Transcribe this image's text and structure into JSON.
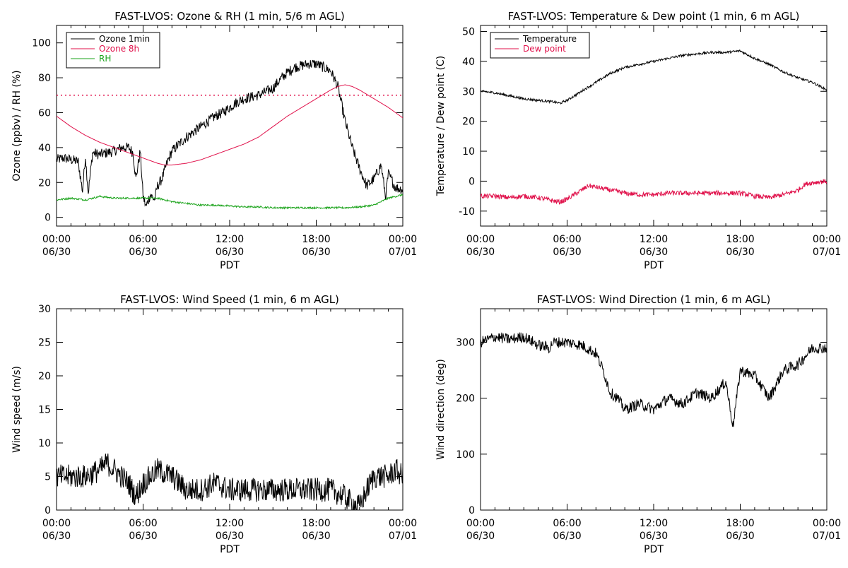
{
  "colors": {
    "black": "#000000",
    "red": "#e0104a",
    "green": "#1aa31a",
    "background": "#ffffff"
  },
  "chart_data": [
    {
      "id": "ozone",
      "type": "line",
      "title": "FAST-LVOS: Ozone & RH (1 min, 5/6 m AGL)",
      "xlabel": "PDT",
      "ylabel": "Ozone (ppbv) / RH (%)",
      "xlim": [
        0,
        24
      ],
      "ylim": [
        -5,
        110
      ],
      "yticks": [
        0,
        20,
        40,
        60,
        80,
        100
      ],
      "xticks": [
        {
          "x": 0,
          "line1": "00:00",
          "line2": "06/30"
        },
        {
          "x": 6,
          "line1": "06:00",
          "line2": "06/30"
        },
        {
          "x": 12,
          "line1": "12:00",
          "line2": "06/30"
        },
        {
          "x": 18,
          "line1": "18:00",
          "line2": "06/30"
        },
        {
          "x": 24,
          "line1": "00:00",
          "line2": "07/01"
        }
      ],
      "grid": false,
      "legend_position": "top-left",
      "reference_line": {
        "y": 70,
        "color": "#e0104a",
        "style": "dotted"
      },
      "series": [
        {
          "name": "Ozone 1min",
          "color": "#000000",
          "noise": 3,
          "x": [
            0,
            0.5,
            1,
            1.5,
            1.8,
            2,
            2.2,
            2.5,
            3,
            3.5,
            4,
            4.5,
            5,
            5.3,
            5.5,
            5.8,
            6,
            6.2,
            6.5,
            6.8,
            7,
            7.3,
            7.7,
            8,
            8.5,
            9,
            9.5,
            10,
            10.5,
            11,
            11.5,
            12,
            12.5,
            13,
            13.5,
            14,
            14.5,
            15,
            15.5,
            16,
            16.5,
            17,
            17.5,
            18,
            18.5,
            19,
            19.5,
            20,
            20.5,
            21,
            21.5,
            22,
            22.5,
            22.8,
            23,
            23.5,
            24
          ],
          "y": [
            33,
            34,
            33,
            32,
            15,
            35,
            14,
            37,
            36,
            37,
            38,
            40,
            40,
            37,
            22,
            38,
            12,
            6,
            13,
            10,
            18,
            22,
            32,
            38,
            42,
            46,
            49,
            52,
            55,
            58,
            60,
            63,
            66,
            68,
            69,
            70,
            72,
            74,
            79,
            83,
            86,
            87,
            88,
            88,
            86,
            84,
            75,
            55,
            40,
            28,
            18,
            22,
            30,
            12,
            25,
            17,
            16
          ]
        },
        {
          "name": "Ozone 8h",
          "color": "#e0104a",
          "noise": 0,
          "x": [
            0,
            1,
            2,
            3,
            4,
            5,
            6,
            7,
            7.5,
            8,
            9,
            10,
            11,
            12,
            13,
            14,
            15,
            16,
            17,
            18,
            19,
            19.5,
            20,
            20.5,
            21,
            22,
            23,
            24
          ],
          "y": [
            58,
            52,
            47,
            43,
            40,
            37,
            34,
            31,
            30,
            30,
            31,
            33,
            36,
            39,
            42,
            46,
            52,
            58,
            63,
            68,
            73,
            75,
            76,
            75,
            73,
            68,
            63,
            57
          ]
        },
        {
          "name": "RH",
          "color": "#1aa31a",
          "noise": 0.5,
          "x": [
            0,
            1,
            2,
            3,
            4,
            5,
            6,
            7,
            8,
            9,
            10,
            11,
            12,
            13,
            14,
            15,
            16,
            17,
            18,
            19,
            20,
            21,
            22,
            22.5,
            23,
            24
          ],
          "y": [
            10,
            11,
            10,
            12,
            11,
            11,
            11,
            11,
            9,
            8,
            7,
            7,
            6.5,
            6,
            6,
            5.5,
            5.5,
            5.5,
            5.5,
            5.5,
            5.5,
            6,
            7,
            9,
            11,
            13
          ]
        }
      ]
    },
    {
      "id": "temperature",
      "type": "line",
      "title": "FAST-LVOS: Temperature & Dew point (1 min, 6 m AGL)",
      "xlabel": "PDT",
      "ylabel": "Temperature / Dew point (C)",
      "xlim": [
        0,
        24
      ],
      "ylim": [
        -15,
        52
      ],
      "yticks": [
        -10,
        0,
        10,
        20,
        30,
        40,
        50
      ],
      "xticks": [
        {
          "x": 0,
          "line1": "00:00",
          "line2": "06/30"
        },
        {
          "x": 6,
          "line1": "06:00",
          "line2": "06/30"
        },
        {
          "x": 12,
          "line1": "12:00",
          "line2": "06/30"
        },
        {
          "x": 18,
          "line1": "18:00",
          "line2": "06/30"
        },
        {
          "x": 24,
          "line1": "00:00",
          "line2": "07/01"
        }
      ],
      "grid": false,
      "legend_position": "top-left",
      "series": [
        {
          "name": "Temperature",
          "color": "#000000",
          "noise": 0.4,
          "x": [
            0,
            1,
            2,
            3,
            4,
            5,
            5.5,
            6,
            7,
            8,
            9,
            10,
            11,
            12,
            13,
            14,
            15,
            16,
            17,
            18,
            19,
            20,
            21,
            22,
            23,
            24
          ],
          "y": [
            30,
            29.5,
            28.5,
            27.5,
            27,
            26.5,
            26,
            27,
            30,
            33,
            36,
            38,
            39,
            40,
            41,
            42,
            42.5,
            43,
            43,
            43.5,
            41,
            39,
            36.5,
            34.5,
            33,
            30.5
          ]
        },
        {
          "name": "Dew point",
          "color": "#e0104a",
          "noise": 0.8,
          "x": [
            0,
            1,
            2,
            3,
            4,
            5,
            5.5,
            6,
            7,
            7.5,
            8,
            9,
            10,
            11,
            12,
            13,
            14,
            15,
            16,
            17,
            18,
            19,
            20,
            21,
            22,
            22.5,
            23,
            24
          ],
          "y": [
            -5,
            -5,
            -5.5,
            -5,
            -5.5,
            -6.5,
            -7,
            -6,
            -3,
            -1.5,
            -2,
            -3,
            -4,
            -4.5,
            -4.5,
            -4,
            -4,
            -4,
            -4,
            -4,
            -4,
            -5,
            -5.5,
            -4.5,
            -3,
            -1,
            -0.5,
            0
          ]
        }
      ]
    },
    {
      "id": "wind_speed",
      "type": "line",
      "title": "FAST-LVOS: Wind Speed (1 min, 6 m AGL)",
      "xlabel": "PDT",
      "ylabel": "Wind speed (m/s)",
      "xlim": [
        0,
        24
      ],
      "ylim": [
        0,
        30
      ],
      "yticks": [
        0,
        5,
        10,
        15,
        20,
        25,
        30
      ],
      "xticks": [
        {
          "x": 0,
          "line1": "00:00",
          "line2": "06/30"
        },
        {
          "x": 6,
          "line1": "06:00",
          "line2": "06/30"
        },
        {
          "x": 12,
          "line1": "12:00",
          "line2": "06/30"
        },
        {
          "x": 18,
          "line1": "18:00",
          "line2": "06/30"
        },
        {
          "x": 24,
          "line1": "00:00",
          "line2": "07/01"
        }
      ],
      "grid": false,
      "series": [
        {
          "name": "",
          "color": "#000000",
          "noise": 1.8,
          "x": [
            0,
            1,
            2,
            3,
            3.5,
            4,
            5,
            5.5,
            6,
            7,
            8,
            9,
            10,
            11,
            12,
            13,
            14,
            15,
            16,
            17,
            18,
            19,
            20,
            20.5,
            21,
            21.5,
            22,
            23,
            23.5,
            24
          ],
          "y": [
            5,
            5,
            5,
            6,
            7,
            6,
            4,
            2,
            4,
            6,
            5,
            3,
            3,
            4,
            3,
            3,
            3,
            3,
            3,
            3,
            3,
            3,
            2,
            1,
            0.5,
            3,
            5,
            5,
            6,
            5
          ]
        }
      ]
    },
    {
      "id": "wind_direction",
      "type": "line",
      "title": "FAST-LVOS: Wind Direction (1 min, 6 m AGL)",
      "xlabel": "PDT",
      "ylabel": "Wind direction (deg)",
      "xlim": [
        0,
        24
      ],
      "ylim": [
        0,
        360
      ],
      "yticks": [
        0,
        100,
        200,
        300
      ],
      "xticks": [
        {
          "x": 0,
          "line1": "00:00",
          "line2": "06/30"
        },
        {
          "x": 6,
          "line1": "06:00",
          "line2": "06/30"
        },
        {
          "x": 12,
          "line1": "12:00",
          "line2": "06/30"
        },
        {
          "x": 18,
          "line1": "18:00",
          "line2": "06/30"
        },
        {
          "x": 24,
          "line1": "00:00",
          "line2": "07/01"
        }
      ],
      "grid": false,
      "series": [
        {
          "name": "",
          "color": "#000000",
          "noise": 10,
          "x": [
            0,
            1,
            2,
            3,
            4,
            4.8,
            5,
            6,
            7,
            8,
            8.5,
            9,
            9.5,
            10,
            11,
            12,
            13,
            14,
            15,
            16,
            17,
            17.5,
            18,
            19,
            20,
            21,
            22,
            23,
            24
          ],
          "y": [
            300,
            310,
            305,
            310,
            295,
            290,
            300,
            300,
            295,
            280,
            250,
            210,
            200,
            180,
            190,
            180,
            200,
            190,
            210,
            200,
            230,
            150,
            250,
            240,
            200,
            250,
            260,
            290,
            290
          ]
        }
      ]
    }
  ]
}
